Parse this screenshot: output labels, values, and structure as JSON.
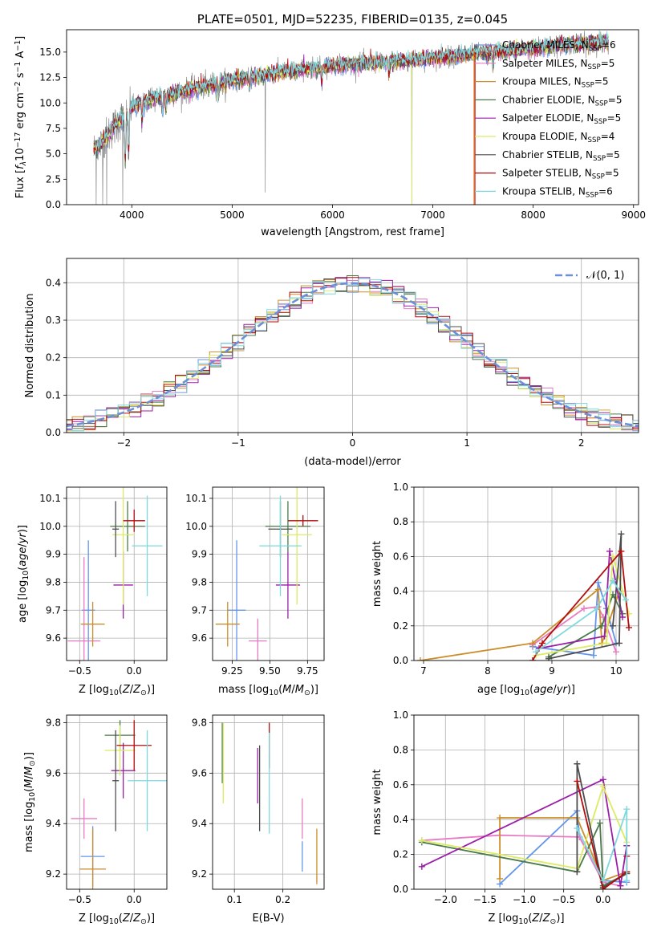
{
  "colors": {
    "Chabrier MILES": "#6495ED",
    "Salpeter MILES": "#E87BC4",
    "Kroupa MILES": "#CC8E2A",
    "Chabrier ELODIE": "#4A7A4A",
    "Salpeter ELODIE": "#9B1FA8",
    "Kroupa ELODIE": "#DCEB60",
    "Chabrier STELIB": "#4D4D4D",
    "Salpeter STELIB": "#B30D0D",
    "Kroupa STELIB": "#7ED9DF",
    "orange": "#F07A1A",
    "normal": "#6C8FD8",
    "grey": "#777777"
  },
  "chart_data": [
    {
      "id": "spectrum",
      "type": "line",
      "title": "PLATE=0501, MJD=52235, FIBERID=0135, z=0.045",
      "xlabel": "wavelength [Angstrom, rest frame]",
      "ylabel": "Flux [f_λ10^-17 erg cm^-2 s^-1 A^-1]",
      "xlim": [
        3350,
        9050
      ],
      "ylim": [
        0,
        17.2
      ],
      "xticks": [
        "4000",
        "5000",
        "6000",
        "7000",
        "8000",
        "9000"
      ],
      "yticks": [
        "0.0",
        "2.5",
        "5.0",
        "7.5",
        "10.0",
        "12.5",
        "15.0"
      ],
      "grid": false,
      "legend_position": "top-right",
      "legend": [
        {
          "label": "Chabrier MILES, N",
          "sub": "SSP",
          "eq": "=6"
        },
        {
          "label": "Salpeter MILES, N",
          "sub": "SSP",
          "eq": "=5"
        },
        {
          "label": "Kroupa MILES, N",
          "sub": "SSP",
          "eq": "=5"
        },
        {
          "label": "Chabrier ELODIE, N",
          "sub": "SSP",
          "eq": "=5"
        },
        {
          "label": "Salpeter ELODIE, N",
          "sub": "SSP",
          "eq": "=5"
        },
        {
          "label": "Kroupa ELODIE, N",
          "sub": "SSP",
          "eq": "=4"
        },
        {
          "label": "Chabrier STELIB, N",
          "sub": "SSP",
          "eq": "=5"
        },
        {
          "label": "Salpeter STELIB, N",
          "sub": "SSP",
          "eq": "=5"
        },
        {
          "label": "Kroupa STELIB, N",
          "sub": "SSP",
          "eq": "=6"
        }
      ],
      "continuum_x": [
        3620,
        3700,
        3800,
        3900,
        4000,
        4200,
        4500,
        4800,
        5000,
        5200,
        5500,
        5800,
        6000,
        6300,
        6600,
        6900,
        7200,
        7500,
        7800,
        8200,
        8600,
        8750
      ],
      "continuum_y": [
        5.4,
        6.0,
        7.4,
        8.5,
        9.6,
        10.4,
        11.1,
        11.8,
        12.2,
        12.6,
        13.0,
        13.4,
        13.7,
        13.9,
        14.0,
        14.3,
        14.6,
        14.9,
        15.2,
        15.6,
        15.9,
        16.0
      ],
      "dips": [
        [
          3934,
          5.2
        ],
        [
          3968,
          4.6
        ],
        [
          4102,
          2.0
        ],
        [
          4305,
          1.8
        ],
        [
          4341,
          1.5
        ],
        [
          4861,
          1.6
        ],
        [
          5175,
          1.4
        ],
        [
          5895,
          1.6
        ],
        [
          6563,
          1.2
        ],
        [
          7600,
          1.5
        ]
      ],
      "drops": [
        [
          3645,
          0.0
        ],
        [
          3710,
          0.0
        ],
        [
          3750,
          0.0
        ],
        [
          3910,
          0.0
        ],
        [
          5330,
          1.2
        ],
        [
          6792,
          0.0
        ],
        [
          7420,
          0.0
        ]
      ]
    },
    {
      "id": "residuals",
      "type": "histogram",
      "xlabel": "(data-model)/error",
      "ylabel": "Normed distribution",
      "xlim": [
        -2.5,
        2.5
      ],
      "ylim": [
        0,
        0.465
      ],
      "xticks": [
        "−2",
        "−1",
        "0",
        "1",
        "2"
      ],
      "yticks": [
        "0.0",
        "0.1",
        "0.2",
        "0.3",
        "0.4"
      ],
      "grid": true,
      "legend_position": "top-right",
      "legend": [
        "𝒩(0, 1)"
      ],
      "bin_width": 0.1
    },
    {
      "id": "age-vs-Z",
      "type": "scatter",
      "xlabel": "Z [log10(Z/Z⊙)]",
      "ylabel": "age  [log10(age/yr)]",
      "xlim": [
        -0.62,
        0.3
      ],
      "ylim": [
        9.52,
        10.14
      ],
      "xticks": [
        [
          "−0.5",
          -0.5
        ],
        [
          "0.0",
          0.0
        ]
      ],
      "yticks": [
        "9.6",
        "9.7",
        "9.8",
        "9.9",
        "10.0",
        "10.1"
      ],
      "grid": true,
      "points": [
        {
          "m": "Chabrier MILES",
          "x": -0.42,
          "y": 9.7,
          "xerr": 0.06,
          "yerr": 0.25
        },
        {
          "m": "Salpeter MILES",
          "x": -0.46,
          "y": 9.59,
          "xerr": 0.15,
          "yerr": 0.3
        },
        {
          "m": "Kroupa MILES",
          "x": -0.38,
          "y": 9.65,
          "xerr": 0.11,
          "yerr": 0.08
        },
        {
          "m": "Chabrier ELODIE",
          "x": -0.06,
          "y": 10.0,
          "xerr": 0.16,
          "yerr": 0.09
        },
        {
          "m": "Salpeter ELODIE",
          "x": -0.1,
          "y": 9.79,
          "xerr": 0.09,
          "yerr": 0.12
        },
        {
          "m": "Kroupa ELODIE",
          "x": -0.1,
          "y": 9.97,
          "xerr": 0.1,
          "yerr": 0.25
        },
        {
          "m": "Chabrier STELIB",
          "x": -0.17,
          "y": 9.99,
          "xerr": 0.03,
          "yerr": 0.1
        },
        {
          "m": "Salpeter STELIB",
          "x": 0.0,
          "y": 10.02,
          "xerr": 0.1,
          "yerr": 0.04
        },
        {
          "m": "Kroupa STELIB",
          "x": 0.12,
          "y": 9.93,
          "xerr": 0.14,
          "yerr": 0.18
        }
      ]
    },
    {
      "id": "age-vs-mass",
      "type": "scatter",
      "xlabel": "mass [log10(M/M⊙)]",
      "ylabel": "",
      "xlim": [
        9.12,
        9.86
      ],
      "ylim": [
        9.52,
        10.14
      ],
      "xticks": [
        [
          "9.25",
          9.25
        ],
        [
          "9.50",
          9.5
        ],
        [
          "9.75",
          9.75
        ]
      ],
      "yticks": [
        "9.6",
        "9.7",
        "9.8",
        "9.9",
        "10.0",
        "10.1"
      ],
      "grid": true,
      "points": [
        {
          "m": "Chabrier MILES",
          "x": 9.28,
          "y": 9.7,
          "xerr": 0.06,
          "yerr": 0.25
        },
        {
          "m": "Salpeter MILES",
          "x": 9.42,
          "y": 9.59,
          "xerr": 0.06,
          "yerr": 0.08
        },
        {
          "m": "Kroupa MILES",
          "x": 9.22,
          "y": 9.65,
          "xerr": 0.08,
          "yerr": 0.08
        },
        {
          "m": "Chabrier ELODIE",
          "x": 9.62,
          "y": 10.0,
          "xerr": 0.15,
          "yerr": 0.09
        },
        {
          "m": "Salpeter ELODIE",
          "x": 9.62,
          "y": 9.79,
          "xerr": 0.08,
          "yerr": 0.12
        },
        {
          "m": "Kroupa ELODIE",
          "x": 9.68,
          "y": 9.97,
          "xerr": 0.1,
          "yerr": 0.25
        },
        {
          "m": "Chabrier STELIB",
          "x": 9.57,
          "y": 9.99,
          "xerr": 0.08,
          "yerr": 0.1
        },
        {
          "m": "Salpeter STELIB",
          "x": 9.72,
          "y": 10.02,
          "xerr": 0.1,
          "yerr": 0.02
        },
        {
          "m": "Kroupa STELIB",
          "x": 9.57,
          "y": 9.93,
          "xerr": 0.14,
          "yerr": 0.18
        }
      ]
    },
    {
      "id": "mw-vs-age",
      "type": "line",
      "xlabel": "age  [log10(age/yr)]",
      "ylabel": "mass weight",
      "xlim": [
        6.85,
        10.35
      ],
      "ylim": [
        0,
        1.0
      ],
      "xticks": [
        [
          "7",
          7
        ],
        [
          "8",
          8
        ],
        [
          "9",
          9
        ],
        [
          "10",
          10
        ]
      ],
      "yticks": [
        "0.0",
        "0.2",
        "0.4",
        "0.6",
        "0.8",
        "1.0"
      ],
      "grid": true,
      "series": [
        {
          "m": "Chabrier MILES",
          "points": [
            [
              8.7,
              0.08
            ],
            [
              9.65,
              0.03
            ],
            [
              9.72,
              0.45
            ],
            [
              9.85,
              0.3
            ],
            [
              10.0,
              0.1
            ]
          ]
        },
        {
          "m": "Salpeter MILES",
          "points": [
            [
              8.7,
              0.09
            ],
            [
              9.5,
              0.3
            ],
            [
              9.72,
              0.31
            ],
            [
              9.8,
              0.25
            ],
            [
              10.0,
              0.05
            ]
          ]
        },
        {
          "m": "Kroupa MILES",
          "points": [
            [
              6.95,
              0.0
            ],
            [
              8.7,
              0.1
            ],
            [
              9.72,
              0.41
            ],
            [
              9.78,
              0.1
            ],
            [
              10.05,
              0.4
            ]
          ]
        },
        {
          "m": "Chabrier ELODIE",
          "points": [
            [
              8.95,
              0.02
            ],
            [
              9.78,
              0.2
            ],
            [
              9.95,
              0.38
            ],
            [
              10.1,
              0.27
            ]
          ]
        },
        {
          "m": "Salpeter ELODIE",
          "points": [
            [
              8.8,
              0.07
            ],
            [
              9.82,
              0.14
            ],
            [
              9.9,
              0.63
            ],
            [
              10.1,
              0.25
            ]
          ]
        },
        {
          "m": "Kroupa ELODIE",
          "points": [
            [
              8.75,
              0.03
            ],
            [
              9.85,
              0.1
            ],
            [
              9.95,
              0.6
            ],
            [
              10.2,
              0.27
            ]
          ]
        },
        {
          "m": "Chabrier STELIB",
          "points": [
            [
              8.95,
              0.01
            ],
            [
              10.05,
              0.1
            ],
            [
              10.08,
              0.73
            ],
            [
              9.95,
              0.2
            ]
          ]
        },
        {
          "m": "Salpeter STELIB",
          "points": [
            [
              8.7,
              0.0
            ],
            [
              8.85,
              0.1
            ],
            [
              10.08,
              0.63
            ],
            [
              10.2,
              0.19
            ]
          ]
        },
        {
          "m": "Kroupa STELIB",
          "points": [
            [
              8.75,
              0.05
            ],
            [
              9.7,
              0.3
            ],
            [
              9.95,
              0.46
            ],
            [
              10.15,
              0.35
            ]
          ]
        }
      ]
    },
    {
      "id": "mass-vs-Z",
      "type": "scatter",
      "xlabel": "Z [log10(Z/Z⊙)]",
      "ylabel": "mass [log10(M/M⊙)]",
      "xlim": [
        -0.62,
        0.3
      ],
      "ylim": [
        9.14,
        9.83
      ],
      "xticks": [
        [
          "−0.5",
          -0.5
        ],
        [
          "0.0",
          0.0
        ]
      ],
      "yticks": [
        "9.2",
        "9.4",
        "9.6",
        "9.8"
      ],
      "grid": true,
      "points": [
        {
          "m": "Chabrier MILES",
          "x": -0.38,
          "y": 9.27,
          "xerr": 0.11,
          "yerr": 0.12
        },
        {
          "m": "Salpeter MILES",
          "x": -0.46,
          "y": 9.42,
          "xerr": 0.12,
          "yerr": 0.08
        },
        {
          "m": "Kroupa MILES",
          "x": -0.38,
          "y": 9.22,
          "xerr": 0.12,
          "yerr": 0.16
        },
        {
          "m": "Chabrier ELODIE",
          "x": -0.13,
          "y": 9.75,
          "xerr": 0.14,
          "yerr": 0.06
        },
        {
          "m": "Salpeter ELODIE",
          "x": -0.1,
          "y": 9.61,
          "xerr": 0.11,
          "yerr": 0.11
        },
        {
          "m": "Kroupa ELODIE",
          "x": -0.13,
          "y": 9.69,
          "xerr": 0.14,
          "yerr": 0.1
        },
        {
          "m": "Chabrier STELIB",
          "x": -0.17,
          "y": 9.57,
          "xerr": 0.03,
          "yerr": 0.2
        },
        {
          "m": "Salpeter STELIB",
          "x": 0.0,
          "y": 9.71,
          "xerr": 0.16,
          "yerr": 0.1
        },
        {
          "m": "Kroupa STELIB",
          "x": 0.12,
          "y": 9.57,
          "xerr": 0.18,
          "yerr": 0.2
        }
      ]
    },
    {
      "id": "mass-vs-ebv",
      "type": "scatter",
      "xlabel": "E(B-V)",
      "ylabel": "",
      "xlim": [
        0.055,
        0.285
      ],
      "ylim": [
        9.14,
        9.83
      ],
      "xticks": [
        [
          "0.1",
          0.1
        ],
        [
          "0.2",
          0.2
        ]
      ],
      "yticks": [
        "9.2",
        "9.4",
        "9.6",
        "9.8"
      ],
      "grid": true,
      "points": [
        {
          "m": "Chabrier MILES",
          "x": 0.24,
          "y": 9.27,
          "xerr": 0.0,
          "yerr": 0.06
        },
        {
          "m": "Salpeter MILES",
          "x": 0.24,
          "y": 9.42,
          "xerr": 0.0,
          "yerr": 0.08
        },
        {
          "m": "Kroupa MILES",
          "x": 0.27,
          "y": 9.27,
          "xerr": 0.0,
          "yerr": 0.11
        },
        {
          "m": "Chabrier ELODIE",
          "x": 0.075,
          "y": 9.68,
          "xerr": 0.0,
          "yerr": 0.12
        },
        {
          "m": "Salpeter ELODIE",
          "x": 0.148,
          "y": 9.59,
          "xerr": 0.0,
          "yerr": 0.11
        },
        {
          "m": "Kroupa ELODIE",
          "x": 0.077,
          "y": 9.64,
          "xerr": 0.0,
          "yerr": 0.16
        },
        {
          "m": "Chabrier STELIB",
          "x": 0.152,
          "y": 9.54,
          "xerr": 0.0,
          "yerr": 0.17
        },
        {
          "m": "Salpeter STELIB",
          "x": 0.172,
          "y": 9.71,
          "xerr": 0.0,
          "yerr": 0.09
        },
        {
          "m": "Kroupa STELIB",
          "x": 0.172,
          "y": 9.56,
          "xerr": 0.0,
          "yerr": 0.2
        }
      ]
    },
    {
      "id": "mw-vs-Z",
      "type": "line",
      "xlabel": "Z [log10(Z/Z⊙)]",
      "ylabel": "mass weight",
      "xlim": [
        -2.4,
        0.45
      ],
      "ylim": [
        0,
        1.0
      ],
      "xticks": [
        [
          "−2.0",
          -2.0
        ],
        [
          "−1.5",
          -1.5
        ],
        [
          "−1.0",
          -1.0
        ],
        [
          "−0.5",
          -0.5
        ],
        [
          "0.0",
          0.0
        ]
      ],
      "yticks": [
        "0.0",
        "0.2",
        "0.4",
        "0.6",
        "0.8",
        "1.0"
      ],
      "grid": true,
      "series": [
        {
          "m": "Chabrier MILES",
          "points": [
            [
              -1.31,
              0.03
            ],
            [
              -0.33,
              0.45
            ],
            [
              -0.3,
              0.3
            ],
            [
              0.0,
              0.05
            ],
            [
              0.3,
              0.04
            ]
          ]
        },
        {
          "m": "Salpeter MILES",
          "points": [
            [
              -2.3,
              0.28
            ],
            [
              -1.31,
              0.31
            ],
            [
              -0.3,
              0.3
            ],
            [
              0.0,
              0.04
            ],
            [
              0.22,
              0.02
            ]
          ]
        },
        {
          "m": "Kroupa MILES",
          "points": [
            [
              -1.31,
              0.06
            ],
            [
              -1.31,
              0.41
            ],
            [
              -0.33,
              0.41
            ],
            [
              -0.0,
              0.05
            ],
            [
              0.3,
              0.1
            ]
          ]
        },
        {
          "m": "Chabrier ELODIE",
          "points": [
            [
              -2.3,
              0.27
            ],
            [
              -0.33,
              0.1
            ],
            [
              -0.04,
              0.38
            ],
            [
              0.0,
              0.02
            ],
            [
              0.3,
              0.09
            ]
          ]
        },
        {
          "m": "Salpeter ELODIE",
          "points": [
            [
              -2.3,
              0.13
            ],
            [
              0.0,
              0.63
            ],
            [
              0.22,
              0.02
            ],
            [
              0.3,
              0.25
            ]
          ]
        },
        {
          "m": "Kroupa ELODIE",
          "points": [
            [
              -2.3,
              0.28
            ],
            [
              -0.33,
              0.12
            ],
            [
              0.0,
              0.59
            ],
            [
              0.3,
              0.27
            ]
          ]
        },
        {
          "m": "Chabrier STELIB",
          "points": [
            [
              -0.33,
              0.1
            ],
            [
              -0.33,
              0.72
            ],
            [
              0.0,
              0.01
            ],
            [
              0.3,
              0.09
            ]
          ]
        },
        {
          "m": "Salpeter STELIB",
          "points": [
            [
              -0.33,
              0.62
            ],
            [
              0.0,
              0.0
            ],
            [
              0.3,
              0.1
            ],
            [
              0.3,
              0.19
            ]
          ]
        },
        {
          "m": "Kroupa STELIB",
          "points": [
            [
              -0.33,
              0.35
            ],
            [
              0.0,
              0.05
            ],
            [
              0.3,
              0.46
            ],
            [
              0.3,
              0.05
            ]
          ]
        }
      ]
    }
  ]
}
